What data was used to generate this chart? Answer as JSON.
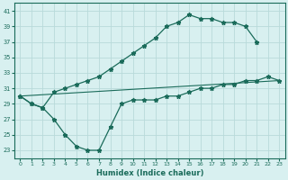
{
  "line1_x": [
    0,
    1,
    2,
    3,
    4,
    5,
    6,
    7,
    8,
    9,
    10,
    11,
    12,
    13,
    14,
    15,
    16,
    17,
    18,
    19,
    20,
    21
  ],
  "line1_y": [
    30.0,
    29.0,
    28.5,
    30.5,
    31.0,
    31.5,
    32.0,
    32.5,
    33.5,
    34.5,
    35.5,
    36.5,
    37.5,
    39.0,
    39.5,
    40.5,
    40.0,
    40.0,
    39.5,
    39.5,
    39.0,
    37.0
  ],
  "line2_x": [
    0,
    23
  ],
  "line2_y": [
    30.0,
    32.0
  ],
  "line3_x": [
    0,
    1,
    2,
    3,
    4,
    5,
    6,
    7,
    8,
    9,
    10,
    11,
    12,
    13,
    14,
    15,
    16,
    17,
    18,
    19,
    20,
    21,
    22,
    23
  ],
  "line3_y": [
    30.0,
    29.0,
    28.5,
    27.0,
    25.0,
    23.5,
    23.0,
    23.0,
    26.0,
    29.0,
    29.5,
    29.5,
    29.5,
    30.0,
    30.0,
    30.5,
    31.0,
    31.0,
    31.5,
    31.5,
    32.0,
    32.0,
    32.5,
    32.0
  ],
  "line_color": "#1a6b5a",
  "bg_color": "#d8f0f0",
  "grid_color": "#b8dada",
  "xlabel": "Humidex (Indice chaleur)",
  "ylim": [
    22,
    42
  ],
  "yticks": [
    23,
    25,
    27,
    29,
    31,
    33,
    35,
    37,
    39,
    41
  ],
  "xlim": [
    -0.5,
    23.5
  ],
  "xticks": [
    0,
    1,
    2,
    3,
    4,
    5,
    6,
    7,
    8,
    9,
    10,
    11,
    12,
    13,
    14,
    15,
    16,
    17,
    18,
    19,
    20,
    21,
    22,
    23
  ]
}
